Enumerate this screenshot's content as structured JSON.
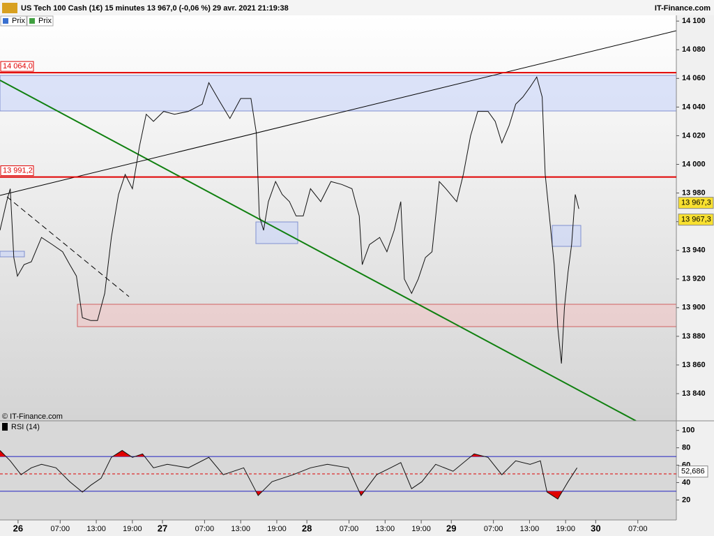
{
  "chart_data": [
    {
      "type": "line",
      "title": "US Tech 100 Cash (1€) 15 minutes 13 967,0 (-0,06 %) 29 avr. 2021 21:19:38",
      "source": "IT-Finance.com",
      "watermark": "© IT-Finance.com",
      "legend_items": [
        "Prix",
        "Prix"
      ],
      "xlim": [
        -3,
        109.4
      ],
      "xticks": [
        {
          "value": 0,
          "label": "26"
        },
        {
          "value": 7,
          "label": "07:00"
        },
        {
          "value": 13,
          "label": "13:00"
        },
        {
          "value": 19,
          "label": "19:00"
        },
        {
          "value": 24,
          "label": "27"
        },
        {
          "value": 31,
          "label": "07:00"
        },
        {
          "value": 37,
          "label": "13:00"
        },
        {
          "value": 43,
          "label": "19:00"
        },
        {
          "value": 48,
          "label": "28"
        },
        {
          "value": 55,
          "label": "07:00"
        },
        {
          "value": 61,
          "label": "13:00"
        },
        {
          "value": 67,
          "label": "19:00"
        },
        {
          "value": 72,
          "label": "29"
        },
        {
          "value": 79,
          "label": "07:00"
        },
        {
          "value": 85,
          "label": "13:00"
        },
        {
          "value": 91,
          "label": "19:00"
        },
        {
          "value": 96,
          "label": "30"
        },
        {
          "value": 103,
          "label": "07:00"
        }
      ],
      "ylim": [
        13821,
        14104
      ],
      "yticks": [
        {
          "value": 13840,
          "label": "13 840"
        },
        {
          "value": 13860,
          "label": "13 860"
        },
        {
          "value": 13880,
          "label": "13 880"
        },
        {
          "value": 13900,
          "label": "13 900"
        },
        {
          "value": 13920,
          "label": "13 920"
        },
        {
          "value": 13940,
          "label": "13 940"
        },
        {
          "value": 13960,
          "label": "13 960"
        },
        {
          "value": 13980,
          "label": "13 980"
        },
        {
          "value": 14000,
          "label": "14 000"
        },
        {
          "value": 14020,
          "label": "14 020"
        },
        {
          "value": 14040,
          "label": "14 040"
        },
        {
          "value": 14060,
          "label": "14 060"
        },
        {
          "value": 14080,
          "label": "14 080"
        },
        {
          "value": 14100,
          "label": "14 100"
        }
      ],
      "levels": [
        {
          "value": 14064.0,
          "label": "14 064,0",
          "color": "#e00000"
        },
        {
          "value": 13991.2,
          "label": "13 991,2",
          "color": "#e00000"
        }
      ],
      "last": {
        "value": 13967.3,
        "label": "13 967,3"
      },
      "series": [
        {
          "name": "Prix",
          "color": "#111111",
          "x": [
            -3.0,
            -1.9,
            -1.3,
            -0.7,
            -0.1,
            1.0,
            2.2,
            3.9,
            5.7,
            7.4,
            8.6,
            9.7,
            10.7,
            12.1,
            13.2,
            14.4,
            15.5,
            16.7,
            17.8,
            19.0,
            20.2,
            21.3,
            22.5,
            24.2,
            26.0,
            28.3,
            30.6,
            31.7,
            33.5,
            35.2,
            37.0,
            38.7,
            39.6,
            40.1,
            40.8,
            41.6,
            42.8,
            43.9,
            45.1,
            46.2,
            47.4,
            48.6,
            50.3,
            52.0,
            53.8,
            55.5,
            56.7,
            57.2,
            58.4,
            60.1,
            61.3,
            62.5,
            63.6,
            64.2,
            65.4,
            66.5,
            67.7,
            68.8,
            70.0,
            71.1,
            72.9,
            74.0,
            75.2,
            76.4,
            78.1,
            79.3,
            80.4,
            81.6,
            82.7,
            83.9,
            85.1,
            86.2,
            87.1,
            87.6,
            88.3,
            89.1,
            89.7,
            90.3,
            90.8,
            91.4,
            92.0,
            92.6,
            93.2
          ],
          "values": [
            13954,
            13974,
            13983,
            13935,
            13922,
            13930,
            13932,
            13949,
            13944,
            13939,
            13930,
            13922,
            13893,
            13891,
            13891,
            13910,
            13949,
            13979,
            13993,
            13983,
            14013,
            14035,
            14030,
            14037,
            14035,
            14037,
            14042,
            14057,
            14044,
            14032,
            14046,
            14046,
            14022,
            13964,
            13954,
            13974,
            13988,
            13979,
            13974,
            13964,
            13964,
            13983,
            13974,
            13988,
            13986,
            13983,
            13964,
            13930,
            13944,
            13949,
            13939,
            13954,
            13974,
            13920,
            13910,
            13920,
            13935,
            13939,
            13988,
            13983,
            13974,
            13993,
            14020,
            14037,
            14037,
            14030,
            14015,
            14027,
            14042,
            14047,
            14054,
            14061,
            14047,
            13993,
            13964,
            13930,
            13886,
            13861,
            13900,
            13925,
            13944,
            13979,
            13969
          ]
        }
      ]
    },
    {
      "type": "line",
      "title": "RSI (14)",
      "xlim": [
        -3,
        109.4
      ],
      "ylim": [
        -3,
        111
      ],
      "yticks": [
        20,
        40,
        60,
        80,
        100
      ],
      "levels": [
        {
          "value": 70,
          "color": "#2020c0"
        },
        {
          "value": 30,
          "color": "#2020c0"
        },
        {
          "value": 50,
          "color": "#e00000"
        }
      ],
      "last": {
        "value": 52.686,
        "label": "52,686"
      },
      "series": [
        {
          "name": "RSI (14)",
          "color": "#111111",
          "x": [
            -3.0,
            -1.3,
            0.5,
            2.2,
            3.9,
            6.3,
            8.6,
            10.7,
            12.1,
            13.8,
            15.5,
            17.3,
            19.0,
            20.7,
            22.5,
            24.8,
            28.3,
            31.7,
            34.1,
            37.5,
            39.9,
            42.2,
            45.7,
            48.6,
            51.4,
            54.9,
            57.0,
            59.6,
            61.9,
            63.6,
            65.4,
            67.1,
            69.4,
            72.3,
            75.8,
            78.1,
            80.4,
            82.7,
            85.1,
            86.8,
            87.9,
            89.7,
            91.4,
            92.9
          ],
          "values": [
            77,
            65,
            49,
            57,
            61,
            57,
            41,
            29,
            37,
            45,
            69,
            77,
            69,
            73,
            57,
            61,
            57,
            69,
            49,
            57,
            25,
            41,
            49,
            57,
            61,
            57,
            25,
            49,
            57,
            63,
            33,
            41,
            61,
            53,
            73,
            69,
            49,
            65,
            61,
            65,
            29,
            21,
            41,
            57
          ]
        }
      ]
    }
  ]
}
